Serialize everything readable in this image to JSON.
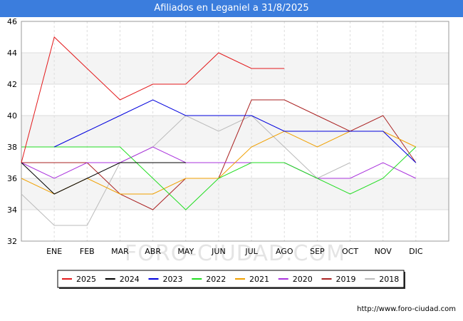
{
  "title": "Afiliados en Leganiel a 31/8/2025",
  "source": "http://www.foro-ciudad.com",
  "watermark": "FORO-CIUDAD.COM",
  "chart_data": {
    "type": "line",
    "title": "Afiliados en Leganiel a 31/8/2025",
    "x_categories": [
      "",
      "ENE",
      "FEB",
      "MAR",
      "ABR",
      "MAY",
      "JUN",
      "JUL",
      "AGO",
      "SEP",
      "OCT",
      "NOV",
      "DIC"
    ],
    "ylim": [
      32,
      46
    ],
    "yticks": [
      32,
      34,
      36,
      38,
      40,
      42,
      44,
      46
    ],
    "grid": true,
    "legend_position": "bottom",
    "series": [
      {
        "name": "2025",
        "color": "#e31a1c",
        "values": [
          37,
          45,
          43,
          41,
          42,
          42,
          44,
          43,
          43
        ]
      },
      {
        "name": "2024",
        "color": "#000000",
        "values": [
          37,
          35,
          36,
          37,
          37,
          37
        ]
      },
      {
        "name": "2023",
        "color": "#0000dd",
        "values": [
          null,
          38,
          39,
          40,
          41,
          40,
          40,
          40,
          39,
          39,
          39,
          39,
          37
        ]
      },
      {
        "name": "2022",
        "color": "#22dd22",
        "values": [
          38,
          38,
          38,
          38,
          36,
          34,
          36,
          37,
          37,
          36,
          35,
          36,
          38
        ]
      },
      {
        "name": "2021",
        "color": "#f0a000",
        "values": [
          36,
          35,
          36,
          35,
          35,
          36,
          36,
          38,
          39,
          38,
          39,
          39,
          38
        ]
      },
      {
        "name": "2020",
        "color": "#aa33dd",
        "values": [
          37,
          36,
          37,
          37,
          38,
          37,
          37,
          37,
          37,
          36,
          36,
          37,
          36
        ]
      },
      {
        "name": "2019",
        "color": "#aa2222",
        "values": [
          37,
          37,
          37,
          35,
          34,
          36,
          36,
          41,
          41,
          40,
          39,
          40,
          37
        ]
      },
      {
        "name": "2018",
        "color": "#bbbbbb",
        "values": [
          35,
          33,
          33,
          37,
          38,
          40,
          39,
          40,
          38,
          36,
          37
        ]
      }
    ]
  }
}
